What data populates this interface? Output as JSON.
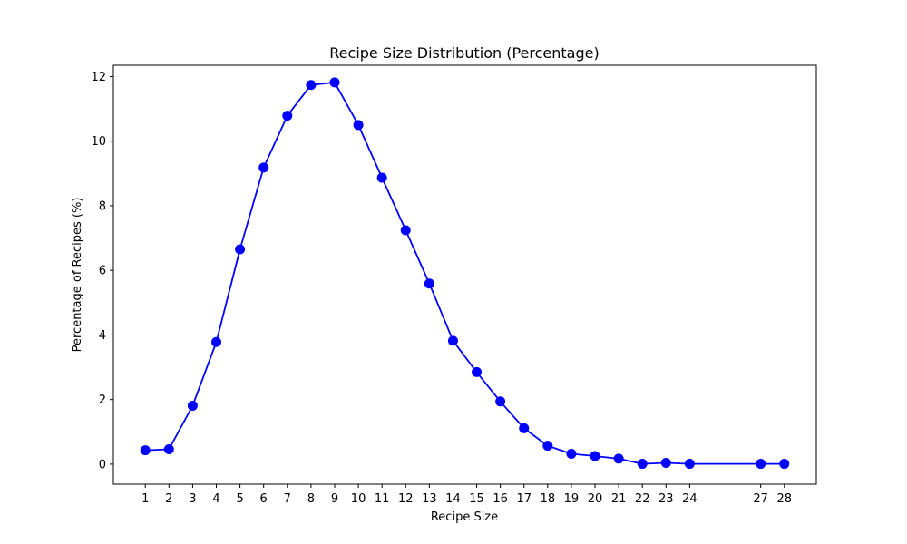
{
  "chart_data": {
    "type": "line",
    "title": "Recipe Size Distribution (Percentage)",
    "xlabel": "Recipe Size",
    "ylabel": "Percentage of Recipes (%)",
    "xlim": [
      -0.35,
      29.35
    ],
    "ylim": [
      -0.62,
      12.35
    ],
    "x_ticks": [
      "1",
      "2",
      "3",
      "4",
      "5",
      "6",
      "7",
      "8",
      "9",
      "10",
      "11",
      "12",
      "13",
      "14",
      "15",
      "16",
      "17",
      "18",
      "19",
      "20",
      "21",
      "22",
      "23",
      "24",
      "27",
      "28"
    ],
    "y_ticks": [
      "0",
      "2",
      "4",
      "6",
      "8",
      "10",
      "12"
    ],
    "grid": false,
    "series": [
      {
        "color": "#0000ff",
        "x": [
          1,
          2,
          3,
          4,
          5,
          6,
          7,
          8,
          9,
          10,
          11,
          12,
          13,
          14,
          15,
          16,
          17,
          18,
          19,
          20,
          21,
          22,
          23,
          24,
          27,
          28
        ],
        "y": [
          0.43,
          0.46,
          1.81,
          3.78,
          6.65,
          9.18,
          10.79,
          11.74,
          11.82,
          10.5,
          8.87,
          7.24,
          5.59,
          3.82,
          2.85,
          1.94,
          1.11,
          0.57,
          0.32,
          0.25,
          0.17,
          0.01,
          0.04,
          0.01,
          0.01,
          0.01
        ]
      }
    ]
  }
}
